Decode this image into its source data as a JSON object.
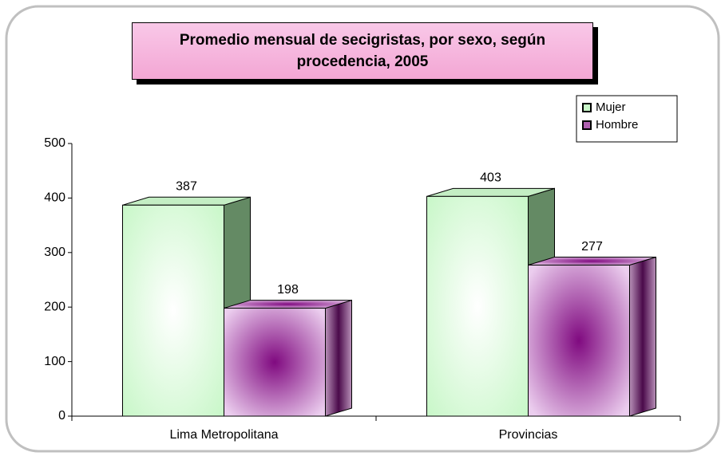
{
  "chart_data": {
    "type": "bar3d",
    "title": "Promedio mensual de secigristas, por sexo, según procedencia, 2005",
    "categories": [
      "Lima Metropolitana",
      "Provincias"
    ],
    "series": [
      {
        "name": "Mujer",
        "color": "#c8f7c8",
        "values": [
          387,
          403
        ]
      },
      {
        "name": "Hombre",
        "color": "#800a80",
        "values": [
          198,
          277
        ]
      }
    ],
    "ylim": [
      0,
      500
    ],
    "yticks": [
      0,
      100,
      200,
      300,
      400,
      500
    ],
    "grid": false,
    "legend": "top-right"
  }
}
